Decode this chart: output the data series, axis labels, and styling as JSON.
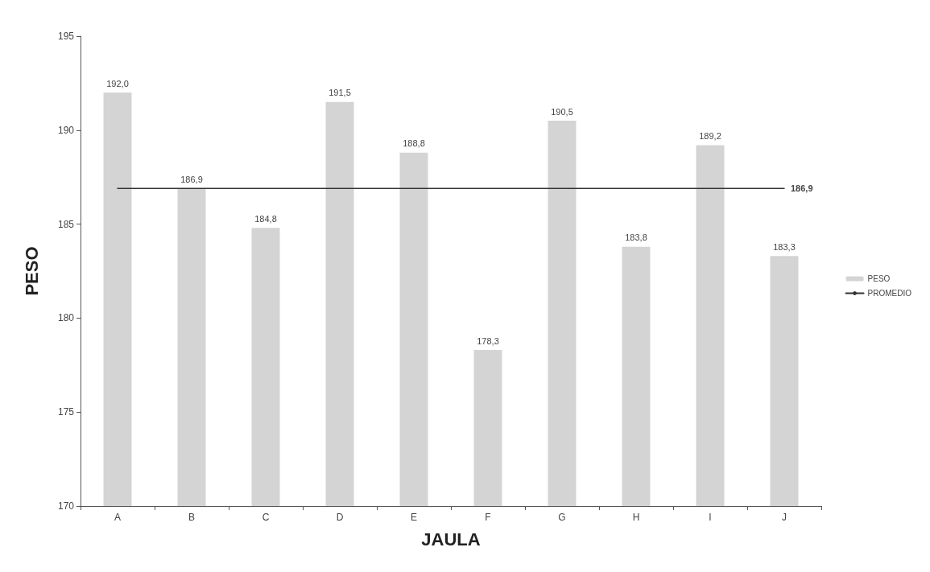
{
  "chart_data": {
    "type": "bar",
    "xlabel": "JAULA",
    "ylabel": "PESO",
    "categories": [
      "A",
      "B",
      "C",
      "D",
      "E",
      "F",
      "G",
      "H",
      "I",
      "J"
    ],
    "series": [
      {
        "name": "PESO",
        "color": "#d4d4d4",
        "values": [
          192.0,
          186.9,
          184.8,
          191.5,
          188.8,
          178.3,
          190.5,
          183.8,
          189.2,
          183.3
        ],
        "value_labels": [
          "192,0",
          "186,9",
          "184,8",
          "191,5",
          "188,8",
          "178,3",
          "190,5",
          "183,8",
          "189,2",
          "183,3"
        ]
      },
      {
        "name": "PROMEDIO",
        "type": "line",
        "color": "#333333",
        "values": [
          186.9,
          186.9,
          186.9,
          186.9,
          186.9,
          186.9,
          186.9,
          186.9,
          186.9,
          186.9
        ],
        "value_labels": [
          null,
          null,
          null,
          null,
          null,
          null,
          null,
          null,
          null,
          "186,9"
        ]
      }
    ],
    "ylim": [
      170,
      195
    ],
    "yticks": [
      170,
      175,
      180,
      185,
      190,
      195
    ],
    "grid": false,
    "legend": "right",
    "marker": "none",
    "line_style": "solid"
  }
}
